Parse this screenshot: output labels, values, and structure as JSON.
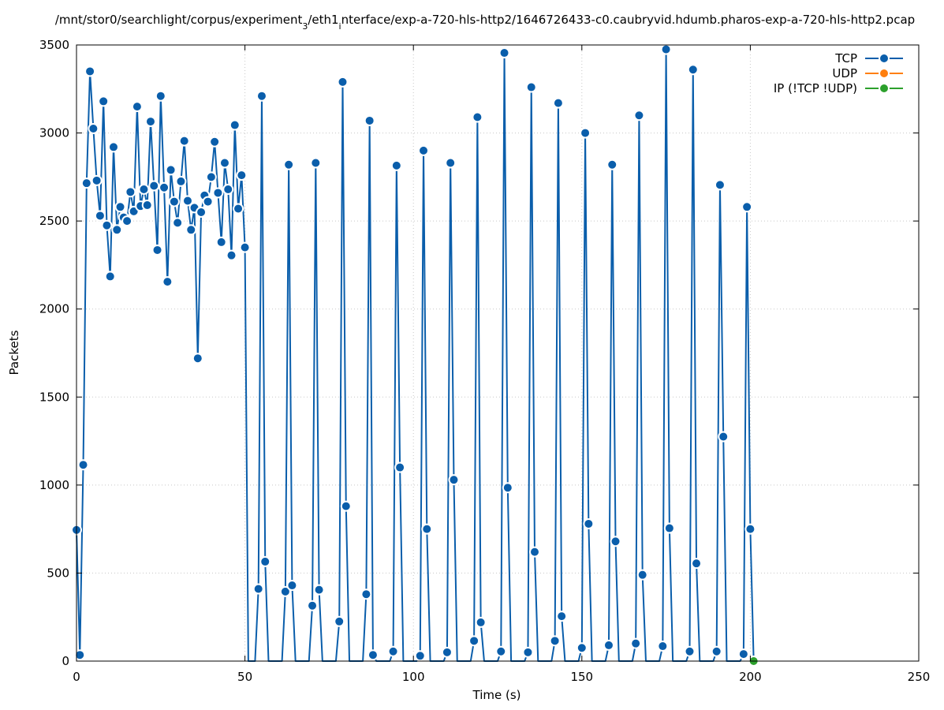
{
  "chart_data": {
    "type": "line",
    "title": [
      "/mnt/stor0/searchlight/corpus/experiment",
      "3",
      "/eth1",
      "i",
      "nterface/exp-a-720-hls-http2/1646726433-c0.caubryvid.hdumb.pharos-exp-a-720-hls-http2.pcap"
    ],
    "xlabel": "Time (s)",
    "ylabel": "Packets",
    "xlim": [
      0,
      250
    ],
    "xticks": [
      0,
      50,
      100,
      150,
      200,
      250
    ],
    "ylim": [
      0,
      3500
    ],
    "yticks": [
      0,
      500,
      1000,
      1500,
      2000,
      2500,
      3000,
      3500
    ],
    "grid": true,
    "legend": "top-right",
    "x": [
      0,
      1,
      2,
      3,
      4,
      5,
      6,
      7,
      8,
      9,
      10,
      11,
      12,
      13,
      14,
      15,
      16,
      17,
      18,
      19,
      20,
      21,
      22,
      23,
      24,
      25,
      26,
      27,
      28,
      29,
      30,
      31,
      32,
      33,
      34,
      35,
      36,
      37,
      38,
      39,
      40,
      41,
      42,
      43,
      44,
      45,
      46,
      47,
      48,
      49,
      50,
      51,
      52,
      53,
      54,
      55,
      56,
      57,
      58,
      59,
      60,
      61,
      62,
      63,
      64,
      65,
      66,
      67,
      68,
      69,
      70,
      71,
      72,
      73,
      74,
      75,
      76,
      77,
      78,
      79,
      80,
      81,
      82,
      83,
      84,
      85,
      86,
      87,
      88,
      89,
      90,
      91,
      92,
      93,
      94,
      95,
      96,
      97,
      98,
      99,
      100,
      101,
      102,
      103,
      104,
      105,
      106,
      107,
      108,
      109,
      110,
      111,
      112,
      113,
      114,
      115,
      116,
      117,
      118,
      119,
      120,
      121,
      122,
      123,
      124,
      125,
      126,
      127,
      128,
      129,
      130,
      131,
      132,
      133,
      134,
      135,
      136,
      137,
      138,
      139,
      140,
      141,
      142,
      143,
      144,
      145,
      146,
      147,
      148,
      149,
      150,
      151,
      152,
      153,
      154,
      155,
      156,
      157,
      158,
      159,
      160,
      161,
      162,
      163,
      164,
      165,
      166,
      167,
      168,
      169,
      170,
      171,
      172,
      173,
      174,
      175,
      176,
      177,
      178,
      179,
      180,
      181,
      182,
      183,
      184,
      185,
      186,
      187,
      188,
      189,
      190,
      191,
      192,
      193,
      194,
      195,
      196,
      197,
      198,
      199,
      200,
      201
    ],
    "series": [
      {
        "name": "TCP",
        "color": "#0a5eab",
        "values": [
          745,
          35,
          1115,
          2715,
          3350,
          3025,
          2730,
          2530,
          3180,
          2475,
          2185,
          2920,
          2450,
          2580,
          2520,
          2500,
          2665,
          2555,
          3150,
          2585,
          2680,
          2590,
          3065,
          2700,
          2335,
          3210,
          2690,
          2155,
          2790,
          2610,
          2490,
          2725,
          2955,
          2615,
          2450,
          2575,
          1720,
          2550,
          2645,
          2610,
          2750,
          2950,
          2660,
          2380,
          2830,
          2680,
          2305,
          3045,
          2570,
          2760,
          2350,
          0,
          0,
          0,
          410,
          3210,
          565,
          0,
          0,
          0,
          0,
          0,
          395,
          2820,
          430,
          0,
          0,
          0,
          0,
          0,
          315,
          2830,
          405,
          0,
          0,
          0,
          0,
          0,
          225,
          3290,
          880,
          0,
          0,
          0,
          0,
          0,
          380,
          3070,
          35,
          0,
          0,
          0,
          0,
          0,
          55,
          2815,
          1100,
          0,
          0,
          0,
          0,
          0,
          30,
          2900,
          750,
          0,
          0,
          0,
          0,
          0,
          50,
          2830,
          1030,
          0,
          0,
          0,
          0,
          0,
          115,
          3090,
          220,
          0,
          0,
          0,
          0,
          0,
          55,
          3455,
          985,
          0,
          0,
          0,
          0,
          0,
          50,
          3260,
          620,
          0,
          0,
          0,
          0,
          0,
          115,
          3170,
          255,
          0,
          0,
          0,
          0,
          0,
          75,
          3000,
          780,
          0,
          0,
          0,
          0,
          0,
          90,
          2820,
          680,
          0,
          0,
          0,
          0,
          0,
          100,
          3100,
          490,
          0,
          0,
          0,
          0,
          0,
          85,
          3475,
          755,
          0,
          0,
          0,
          0,
          0,
          55,
          3360,
          555,
          0,
          0,
          0,
          0,
          0,
          55,
          2705,
          1275,
          0,
          0,
          0,
          0,
          0,
          40,
          2580,
          750,
          0
        ]
      },
      {
        "name": "UDP",
        "color": "#ff7f0e",
        "values": [
          null,
          null,
          null,
          null,
          null,
          null,
          null,
          null,
          null,
          null,
          null,
          null,
          null,
          null,
          null,
          null,
          null,
          null,
          null,
          null,
          null,
          null,
          null,
          null,
          null,
          null,
          null,
          null,
          null,
          null,
          null,
          null,
          null,
          null,
          null,
          null,
          null,
          null,
          null,
          null,
          null,
          null,
          null,
          null,
          null,
          null,
          null,
          null,
          null,
          null,
          null,
          null,
          null,
          null,
          null,
          null,
          null,
          null,
          null,
          null,
          null,
          null,
          null,
          null,
          null,
          null,
          null,
          null,
          null,
          null,
          null,
          null,
          null,
          null,
          null,
          null,
          null,
          null,
          null,
          null,
          null,
          null,
          null,
          null,
          null,
          null,
          null,
          null,
          null,
          null,
          null,
          null,
          null,
          null,
          null,
          null,
          null,
          null,
          null,
          null,
          null,
          null,
          null,
          null,
          null,
          null,
          null,
          null,
          null,
          null,
          null,
          null,
          null,
          null,
          null,
          null,
          null,
          null,
          null,
          null,
          null,
          null,
          null,
          null,
          null,
          null,
          null,
          null,
          null,
          null,
          null,
          null,
          null,
          null,
          null,
          null,
          null,
          null,
          null,
          null,
          null,
          null,
          null,
          null,
          null,
          null,
          null,
          null,
          null,
          null,
          null,
          null,
          null,
          null,
          null,
          null,
          null,
          null,
          null,
          null,
          null,
          null,
          null,
          null,
          null,
          null,
          null,
          null,
          null,
          null,
          null,
          null,
          null,
          null,
          null,
          null,
          null,
          null,
          null,
          null,
          null,
          null,
          null,
          null,
          null,
          null,
          null,
          null,
          null,
          null,
          null,
          null,
          null,
          null,
          null,
          null,
          null,
          null,
          null,
          null,
          null,
          null
        ]
      },
      {
        "name": "IP (!TCP  !UDP)",
        "color": "#2ca02c",
        "values": [
          null,
          null,
          null,
          null,
          null,
          null,
          null,
          null,
          null,
          null,
          null,
          null,
          null,
          null,
          null,
          null,
          null,
          null,
          null,
          null,
          null,
          null,
          null,
          null,
          null,
          null,
          null,
          null,
          null,
          null,
          null,
          null,
          null,
          null,
          null,
          null,
          null,
          null,
          null,
          null,
          null,
          null,
          null,
          null,
          null,
          null,
          null,
          null,
          null,
          null,
          null,
          null,
          null,
          null,
          null,
          null,
          null,
          null,
          null,
          null,
          null,
          null,
          null,
          null,
          null,
          null,
          null,
          null,
          null,
          null,
          null,
          null,
          null,
          null,
          null,
          null,
          null,
          null,
          null,
          null,
          null,
          null,
          null,
          null,
          null,
          null,
          null,
          null,
          null,
          null,
          null,
          null,
          null,
          null,
          null,
          null,
          null,
          null,
          null,
          null,
          null,
          null,
          null,
          null,
          null,
          null,
          null,
          null,
          null,
          null,
          null,
          null,
          null,
          null,
          null,
          null,
          null,
          null,
          null,
          null,
          null,
          null,
          null,
          null,
          null,
          null,
          null,
          null,
          null,
          null,
          null,
          null,
          null,
          null,
          null,
          null,
          null,
          null,
          null,
          null,
          null,
          null,
          null,
          null,
          null,
          null,
          null,
          null,
          null,
          null,
          null,
          null,
          null,
          null,
          null,
          null,
          null,
          null,
          null,
          null,
          null,
          null,
          null,
          null,
          null,
          null,
          null,
          null,
          null,
          null,
          null,
          null,
          null,
          null,
          null,
          null,
          null,
          null,
          null,
          null,
          null,
          null,
          null,
          null,
          null,
          null,
          null,
          null,
          null,
          null,
          null,
          null,
          null,
          null,
          null,
          null,
          null,
          null,
          null,
          null,
          null,
          0
        ]
      }
    ]
  }
}
